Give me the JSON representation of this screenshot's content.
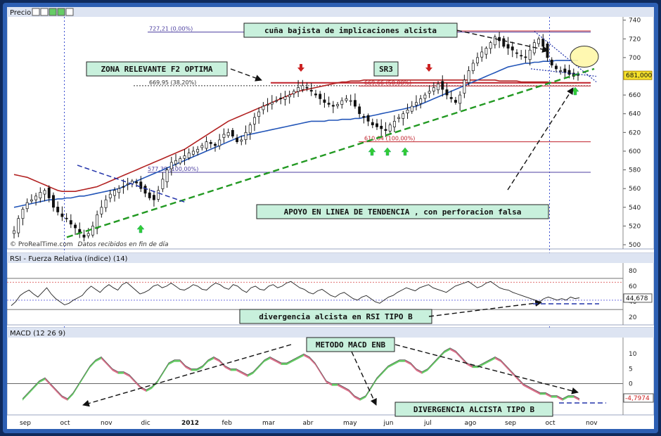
{
  "panels": {
    "price": {
      "title": "Precio"
    },
    "rsi": {
      "title": "RSI - Fuerza Relativa (índice) (14)"
    },
    "macd": {
      "title": "MACD (12 26 9)"
    }
  },
  "watermark": "© ProRealTime.com",
  "watermark_note": "Datos recibidos en fin de día",
  "icons": [
    "wrench-icon",
    "window-icon",
    "up-arrow-icon",
    "down-arrow-icon",
    "close-icon"
  ],
  "colors": {
    "candle": "#111111",
    "ma_long": "#b22222",
    "ma_mid": "#2255b8",
    "trendline": "#229922",
    "resistance": "#c0202a",
    "fib": "#4c3fa0",
    "annotation_bg": "#c8f0dc",
    "up_arrow": "#33cc33",
    "down_arrow": "#cc2222",
    "macd_pos": "#66cc66",
    "macd_neg": "#d9708a",
    "highlight": "#fff7a8"
  },
  "chart_data": [
    {
      "type": "line",
      "panel": "price",
      "title": "Precio",
      "x_ticks": [
        "sep",
        "oct",
        "nov",
        "dic",
        "2012",
        "feb",
        "mar",
        "abr",
        "may",
        "jun",
        "jul",
        "ago",
        "sep",
        "oct",
        "nov"
      ],
      "y_ticks": [
        500,
        520,
        540,
        560,
        580,
        600,
        620,
        640,
        660,
        680,
        700,
        720,
        740
      ],
      "ylim": [
        497,
        742
      ],
      "current_price_label": "681,000",
      "series": [
        {
          "role": "close",
          "values": [
            515,
            528,
            538,
            545,
            548,
            552,
            556,
            558,
            550,
            540,
            535,
            530,
            528,
            522,
            518,
            512,
            508,
            512,
            520,
            532,
            540,
            548,
            554,
            558,
            560,
            562,
            565,
            568,
            566,
            560,
            555,
            550,
            548,
            558,
            570,
            580,
            588,
            590,
            592,
            595,
            598,
            600,
            602,
            606,
            610,
            608,
            606,
            612,
            618,
            620,
            616,
            610,
            612,
            620,
            628,
            636,
            642,
            648,
            650,
            652,
            654,
            656,
            658,
            660,
            664,
            668,
            670,
            668,
            664,
            660,
            656,
            652,
            650,
            648,
            650,
            654,
            656,
            654,
            648,
            640,
            636,
            632,
            628,
            626,
            624,
            622,
            628,
            632,
            636,
            640,
            644,
            648,
            652,
            656,
            660,
            664,
            668,
            672,
            666,
            660,
            656,
            652,
            660,
            676,
            686,
            694,
            700,
            706,
            710,
            716,
            722,
            718,
            712,
            710,
            708,
            705,
            702,
            700,
            708,
            716,
            720,
            712,
            700,
            692,
            688,
            686,
            684,
            682,
            680,
            681
          ]
        },
        {
          "role": "ma_long",
          "values": [
            575,
            574,
            573,
            572,
            570,
            568,
            566,
            564,
            562,
            560,
            558,
            557,
            557,
            557,
            557,
            558,
            559,
            560,
            561,
            562,
            564,
            566,
            568,
            570,
            572,
            574,
            576,
            578,
            580,
            582,
            584,
            586,
            588,
            590,
            592,
            594,
            596,
            598,
            600,
            602,
            605,
            608,
            611,
            614,
            617,
            620,
            623,
            626,
            629,
            632,
            634,
            636,
            638,
            640,
            642,
            644,
            646,
            648,
            650,
            652,
            654,
            656,
            658,
            660,
            662,
            664,
            665,
            666,
            667,
            668,
            669,
            670,
            671,
            672,
            673,
            674,
            674,
            675,
            675,
            675,
            676,
            676,
            676,
            676,
            676,
            676,
            676,
            676,
            676,
            676,
            676,
            676,
            676,
            676,
            676,
            676,
            676,
            676,
            676,
            676,
            676,
            676,
            676,
            676,
            676,
            676,
            676,
            676,
            676,
            676,
            676,
            675,
            675,
            675,
            675,
            675,
            674,
            674,
            674,
            674,
            674,
            674,
            674,
            673,
            673,
            673,
            673,
            673,
            673,
            673
          ]
        },
        {
          "role": "ma_mid",
          "values": [
            540,
            541,
            542,
            543,
            544,
            545,
            546,
            547,
            548,
            548,
            549,
            549,
            550,
            550,
            551,
            552,
            552,
            553,
            554,
            555,
            556,
            557,
            558,
            559,
            560,
            562,
            564,
            566,
            568,
            570,
            572,
            574,
            576,
            578,
            580,
            582,
            584,
            586,
            588,
            590,
            592,
            594,
            596,
            598,
            600,
            602,
            604,
            606,
            608,
            610,
            612,
            614,
            616,
            617,
            618,
            619,
            620,
            621,
            622,
            623,
            624,
            625,
            626,
            627,
            628,
            629,
            630,
            631,
            632,
            632,
            632,
            632,
            633,
            633,
            633,
            634,
            634,
            634,
            635,
            635,
            636,
            637,
            638,
            639,
            640,
            641,
            642,
            643,
            644,
            645,
            646,
            647,
            648,
            650,
            652,
            654,
            656,
            658,
            660,
            662,
            664,
            666,
            668,
            670,
            672,
            674,
            676,
            678,
            680,
            682,
            684,
            686,
            688,
            690,
            691,
            692,
            693,
            694,
            694,
            695,
            695,
            696,
            696,
            696,
            697,
            697,
            697,
            697,
            697,
            697
          ]
        }
      ],
      "levels": [
        {
          "label": "727,21 (0,00%)",
          "value": 727.21
        },
        {
          "label": "669,95 (38,20%)",
          "value": 669.95
        },
        {
          "label": "577,39 (100,00%)",
          "value": 577.39
        },
        {
          "label": "728,45 (0,00%)",
          "value": 728.45
        },
        {
          "label": "669,66 (50,00%)",
          "value": 669.66
        },
        {
          "label": "610,04 (100,00%)",
          "value": 610.04
        }
      ],
      "annotations": [
        "cuña bajista de implicaciones alcista",
        "ZONA RELEVANTE F2 OPTIMA",
        "SR3",
        "APOYO EN LINEA DE TENDENCIA , con perforacion falsa"
      ]
    },
    {
      "type": "line",
      "panel": "rsi",
      "title": "RSI - Fuerza Relativa (índice) (14)",
      "y_ticks": [
        20,
        40,
        60,
        80
      ],
      "ylim": [
        12,
        88
      ],
      "current_label": "44,678",
      "values": [
        35,
        40,
        48,
        52,
        55,
        50,
        46,
        52,
        58,
        50,
        44,
        40,
        36,
        38,
        42,
        45,
        48,
        55,
        60,
        56,
        52,
        58,
        62,
        58,
        55,
        62,
        65,
        60,
        55,
        50,
        52,
        55,
        60,
        62,
        58,
        60,
        64,
        60,
        56,
        55,
        58,
        62,
        60,
        56,
        55,
        60,
        64,
        62,
        58,
        56,
        62,
        60,
        55,
        52,
        58,
        60,
        56,
        55,
        60,
        62,
        58,
        60,
        64,
        66,
        62,
        58,
        56,
        52,
        50,
        54,
        56,
        52,
        48,
        46,
        50,
        52,
        48,
        44,
        42,
        46,
        48,
        44,
        40,
        38,
        42,
        46,
        48,
        52,
        55,
        58,
        56,
        54,
        58,
        60,
        62,
        58,
        56,
        54,
        52,
        56,
        60,
        62,
        64,
        66,
        62,
        58,
        60,
        64,
        66,
        62,
        58,
        56,
        55,
        52,
        50,
        48,
        46,
        44,
        42,
        40,
        44,
        46,
        44,
        42,
        44,
        42,
        46,
        44,
        45
      ],
      "annotations": [
        "divergencia alcista en RSI TIPO B"
      ]
    },
    {
      "type": "area",
      "panel": "macd",
      "title": "MACD (12 26 9)",
      "y_ticks": [
        -5,
        0,
        5,
        10
      ],
      "ylim": [
        -10,
        15
      ],
      "current_label": "-4,7974",
      "values": [
        -5,
        -3,
        -1,
        1,
        2,
        0,
        -2,
        -4,
        -5,
        -3,
        0,
        3,
        6,
        8,
        9,
        7,
        5,
        4,
        4,
        3,
        1,
        -1,
        -2,
        -1,
        1,
        4,
        7,
        8,
        8,
        6,
        5,
        5,
        6,
        8,
        9,
        8,
        6,
        5,
        5,
        4,
        3,
        4,
        6,
        8,
        9,
        8,
        7,
        7,
        8,
        9,
        10,
        9,
        7,
        4,
        1,
        0,
        0,
        -1,
        -2,
        -4,
        -5,
        -4,
        -1,
        2,
        4,
        6,
        7,
        8,
        8,
        7,
        5,
        4,
        5,
        7,
        9,
        11,
        12,
        11,
        9,
        7,
        6,
        6,
        7,
        8,
        9,
        8,
        6,
        4,
        2,
        0,
        -1,
        -2,
        -3,
        -3,
        -4,
        -4,
        -5,
        -4,
        -4,
        -5
      ],
      "annotations": [
        "METODO MACD ENB",
        "DIVERGENCIA ALCISTA TIPO B"
      ]
    }
  ]
}
